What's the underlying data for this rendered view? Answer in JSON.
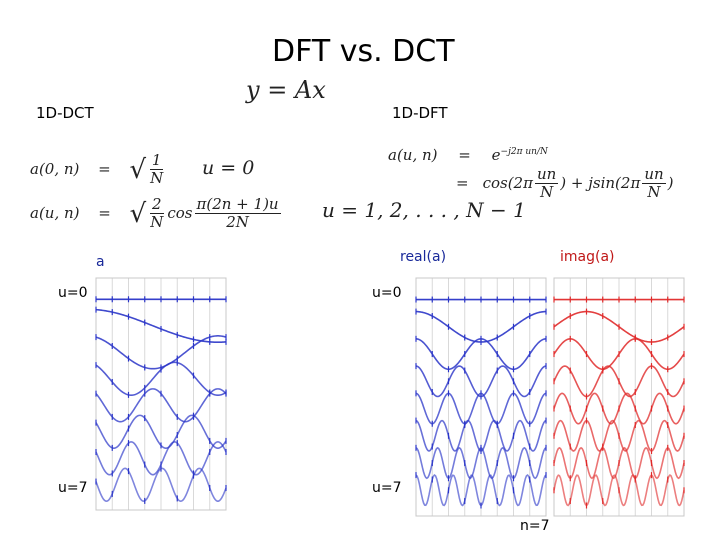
{
  "slide": {
    "title": "DFT vs. DCT",
    "center_eq": "y = Ax",
    "dct_label": "1D-DCT",
    "dft_label": "1D-DFT"
  },
  "dct_eq": {
    "row1_lhs": "a(0, n)",
    "row1_op": "=",
    "row1_num": "1",
    "row1_den": "N",
    "row1_cond": "u = 0",
    "row2_lhs": "a(u, n)",
    "row2_op": "=",
    "row2_num": "2",
    "row2_den": "N",
    "row2_cos": "cos",
    "row2_arg_num": "π(2n + 1)u",
    "row2_arg_den": "2N",
    "row3_cond": "u = 1, 2, . . . , N − 1"
  },
  "dft_eq": {
    "row1_lhs": "a(u, n)",
    "row1_op": "=",
    "row1_rhs": "e",
    "row1_exp": "−j2π un/N",
    "row2_op": "=",
    "row2_a": "cos(2π",
    "row2_num_a": "un",
    "row2_den_a": "N",
    "row2_b": ") + jsin(2π",
    "row2_num_b": "un",
    "row2_den_b": "N",
    "row2_c": ")"
  },
  "plots": {
    "dct_title": "a",
    "dft_real_title": "real(a)",
    "dft_imag_title": "imag(a)",
    "dct_top_label": "u=0",
    "dct_bottom_label": "u=7",
    "dft_top_label": "u=0",
    "dft_bottom_label": "u=7",
    "n_label": "n=7",
    "samples_N": 8,
    "rows": 8
  },
  "colors": {
    "dct": "#2a35c8",
    "dft_real": "#2a35c8",
    "dft_imag": "#e02a2a",
    "title_label": "#111111"
  }
}
